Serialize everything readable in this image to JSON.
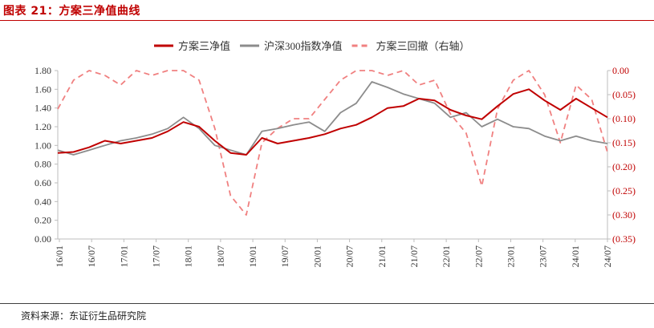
{
  "figure_title": "图表 21：方案三净值曲线",
  "source_note": "资料来源：东证衍生品研究院",
  "colors": {
    "title": "#c00000",
    "series_nav": "#c00000",
    "series_index": "#8c8c8c",
    "series_drawdown": "#f08080",
    "right_axis_labels": "#c00000"
  },
  "chart_data": {
    "type": "line",
    "legend_position": "top-center",
    "grid": false,
    "x_tick_labels": [
      "16/01",
      "16/07",
      "17/01",
      "17/07",
      "18/01",
      "18/07",
      "19/01",
      "19/07",
      "20/01",
      "20/07",
      "21/01",
      "21/07",
      "22/01",
      "22/07",
      "23/01",
      "23/07",
      "24/01",
      "24/07"
    ],
    "y_left": {
      "ticks": [
        "0.00",
        "0.20",
        "0.40",
        "0.60",
        "0.80",
        "1.00",
        "1.20",
        "1.40",
        "1.60",
        "1.80"
      ],
      "min": 0.0,
      "max": 1.8
    },
    "y_right": {
      "ticks": [
        "0.00",
        "(0.05)",
        "(0.10)",
        "(0.15)",
        "(0.20)",
        "(0.25)",
        "(0.30)",
        "(0.35)"
      ],
      "min": -0.35,
      "max": 0.0
    },
    "x": [
      "16/01",
      "16/04",
      "16/07",
      "16/10",
      "17/01",
      "17/04",
      "17/07",
      "17/10",
      "18/01",
      "18/04",
      "18/07",
      "18/10",
      "19/01",
      "19/04",
      "19/07",
      "19/10",
      "20/01",
      "20/04",
      "20/07",
      "20/10",
      "21/01",
      "21/04",
      "21/07",
      "21/10",
      "22/01",
      "22/04",
      "22/07",
      "22/10",
      "23/01",
      "23/04",
      "23/07",
      "23/10",
      "24/01",
      "24/04",
      "24/07",
      "24/08"
    ],
    "series": [
      {
        "name": "方案三净值",
        "axis": "left",
        "style": "solid",
        "values": [
          0.92,
          0.93,
          0.98,
          1.05,
          1.02,
          1.05,
          1.08,
          1.15,
          1.25,
          1.2,
          1.05,
          0.92,
          0.9,
          1.08,
          1.02,
          1.05,
          1.08,
          1.12,
          1.18,
          1.22,
          1.3,
          1.4,
          1.42,
          1.5,
          1.48,
          1.38,
          1.32,
          1.28,
          1.42,
          1.55,
          1.6,
          1.48,
          1.38,
          1.5,
          1.4,
          1.3
        ]
      },
      {
        "name": "沪深300指数净值",
        "axis": "left",
        "style": "solid",
        "values": [
          0.95,
          0.9,
          0.95,
          1.0,
          1.05,
          1.08,
          1.12,
          1.18,
          1.3,
          1.18,
          1.0,
          0.95,
          0.9,
          1.15,
          1.18,
          1.22,
          1.25,
          1.15,
          1.35,
          1.45,
          1.68,
          1.62,
          1.55,
          1.5,
          1.45,
          1.3,
          1.35,
          1.2,
          1.28,
          1.2,
          1.18,
          1.1,
          1.05,
          1.1,
          1.05,
          1.02
        ]
      },
      {
        "name": "方案三回撤（右轴）",
        "axis": "right",
        "style": "dashed",
        "values": [
          -0.08,
          -0.02,
          0.0,
          -0.01,
          -0.03,
          0.0,
          -0.01,
          0.0,
          0.0,
          -0.02,
          -0.12,
          -0.26,
          -0.3,
          -0.15,
          -0.12,
          -0.1,
          -0.1,
          -0.06,
          -0.02,
          0.0,
          0.0,
          -0.01,
          0.0,
          -0.03,
          -0.02,
          -0.09,
          -0.13,
          -0.24,
          -0.08,
          -0.02,
          0.0,
          -0.05,
          -0.15,
          -0.03,
          -0.06,
          -0.17
        ]
      }
    ]
  }
}
